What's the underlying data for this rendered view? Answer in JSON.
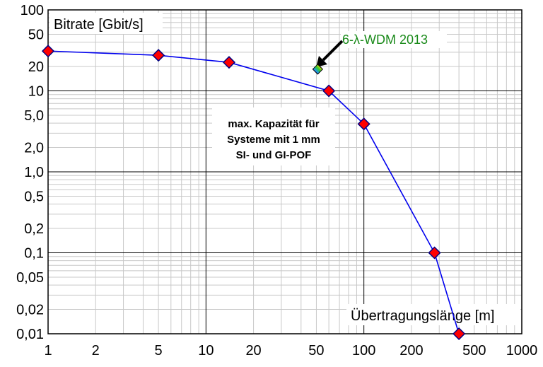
{
  "chart_data": {
    "type": "scatter",
    "title": "",
    "ylabel": "Bitrate [Gbit/s]",
    "xlabel": "Übertragungslänge [m]",
    "x_scale": "log",
    "y_scale": "log",
    "xlim": [
      1,
      1000
    ],
    "ylim": [
      0.01,
      100
    ],
    "grid": true,
    "x_ticks": [
      "1",
      "2",
      "5",
      "10",
      "20",
      "50",
      "100",
      "200",
      "500",
      "1000"
    ],
    "y_ticks": [
      "0,01",
      "0,02",
      "0,05",
      "0,1",
      "0,2",
      "0,5",
      "1,0",
      "2,0",
      "5,0",
      "10",
      "20",
      "50",
      "100"
    ],
    "series": [
      {
        "x": [
          1,
          5,
          14,
          60,
          100,
          280,
          400
        ],
        "y": [
          31,
          27.5,
          22.5,
          10,
          3.9,
          0.1,
          0.01
        ],
        "color": "#0000ee",
        "marker_color": "#ff0000"
      }
    ],
    "highlight_point": {
      "x": 51,
      "y": 18.5,
      "label": "6-λ-WDM 2013"
    },
    "annotations": [
      "max. Kapazität für",
      "Systeme mit 1 mm",
      "SI- und GI-POF"
    ]
  }
}
